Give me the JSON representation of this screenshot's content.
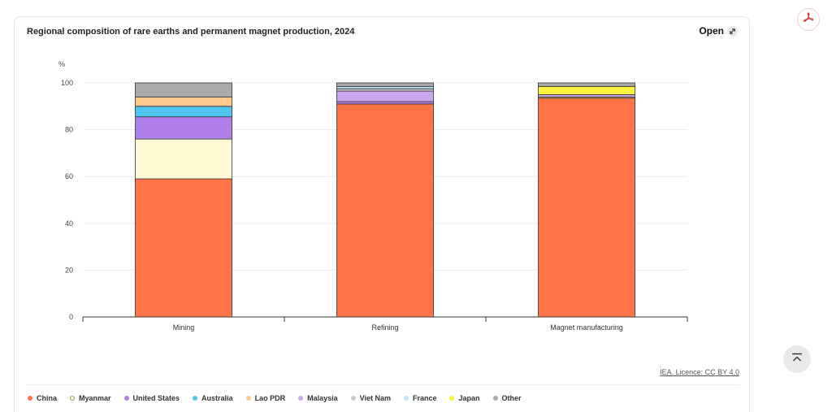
{
  "header": {
    "title": "Regional composition of rare earths and permanent magnet production, 2024",
    "open_label": "Open"
  },
  "footer": {
    "license": "IEA. Licence: CC BY 4.0"
  },
  "icons": {
    "open": "external-open-icon",
    "pdf": "pdf-icon",
    "back_to_top": "back-to-top-icon"
  },
  "chart_data": {
    "type": "bar",
    "stacked": true,
    "title": "Regional composition of rare earths and permanent magnet production, 2024",
    "xlabel": "",
    "ylabel": "%",
    "ylim": [
      0,
      100
    ],
    "yticks": [
      0,
      20,
      40,
      60,
      80,
      100
    ],
    "grid": true,
    "legend_position": "bottom",
    "categories": [
      "Mining",
      "Refining",
      "Magnet manufacturing"
    ],
    "series": [
      {
        "name": "China",
        "color": "#ff7447",
        "values": [
          59,
          91,
          93.5
        ]
      },
      {
        "name": "Myanmar",
        "color": "#fff9d4",
        "values": [
          17,
          0,
          0
        ]
      },
      {
        "name": "United States",
        "color": "#b07fea",
        "values": [
          9.5,
          1,
          0
        ]
      },
      {
        "name": "Australia",
        "color": "#4fc6ef",
        "values": [
          4.5,
          0,
          0
        ]
      },
      {
        "name": "Lao PDR",
        "color": "#ffc98c",
        "values": [
          4,
          0,
          0.5
        ]
      },
      {
        "name": "Malaysia",
        "color": "#c8a9f0",
        "values": [
          0,
          4.5,
          1
        ]
      },
      {
        "name": "Viet Nam",
        "color": "#c9c9d2",
        "values": [
          0,
          1,
          0
        ]
      },
      {
        "name": "France",
        "color": "#bfe7f5",
        "values": [
          0,
          1,
          0
        ]
      },
      {
        "name": "Japan",
        "color": "#fbf23d",
        "values": [
          0,
          0,
          3.5
        ]
      },
      {
        "name": "Other",
        "color": "#aaaaaa",
        "values": [
          6,
          1.5,
          1.5
        ]
      }
    ]
  }
}
